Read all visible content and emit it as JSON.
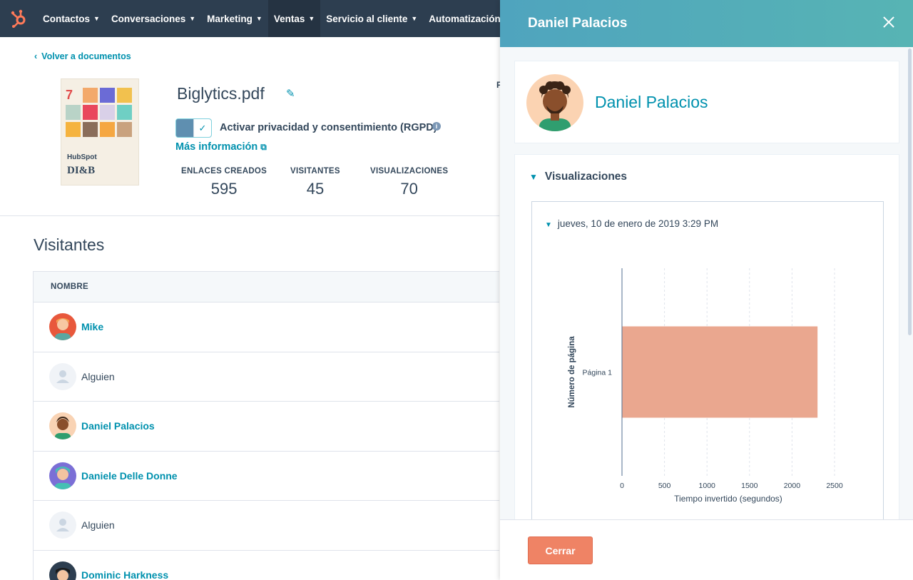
{
  "nav": {
    "items": [
      {
        "label": "Contactos"
      },
      {
        "label": "Conversaciones"
      },
      {
        "label": "Marketing"
      },
      {
        "label": "Ventas"
      },
      {
        "label": "Servicio al cliente"
      },
      {
        "label": "Automatización"
      }
    ],
    "active": "Ventas"
  },
  "document": {
    "back_label": "Volver a documentos",
    "title": "Biglytics.pdf",
    "thumb_brand": "HubSpot",
    "thumb_year": "DI&B",
    "gdpr_toggle_on": true,
    "gdpr_label": "Activar privacidad y consentimiento (RGPD)",
    "more_info_label": "Más información",
    "stats": [
      {
        "label": "ENLACES CREADOS",
        "value": "595"
      },
      {
        "label": "VISITANTES",
        "value": "45"
      },
      {
        "label": "VISUALIZACIONES",
        "value": "70"
      }
    ],
    "side_letter": "F"
  },
  "visitors": {
    "title": "Visitantes",
    "column_header": "NOMBRE",
    "rows": [
      {
        "name": "Mike",
        "known": true
      },
      {
        "name": "Alguien",
        "known": false
      },
      {
        "name": "Daniel Palacios",
        "known": true
      },
      {
        "name": "Daniele Delle Donne",
        "known": true
      },
      {
        "name": "Alguien",
        "known": false
      },
      {
        "name": "Dominic Harkness",
        "known": true
      }
    ]
  },
  "panel": {
    "title": "Daniel Palacios",
    "profile_name": "Daniel Palacios",
    "views_header": "Visualizaciones",
    "session_label": "jueves, 10 de enero de 2019 3:29 PM",
    "close_button": "Cerrar"
  },
  "chart_data": {
    "type": "bar",
    "orientation": "horizontal",
    "categories": [
      "Página 1"
    ],
    "values": [
      2300
    ],
    "xlabel": "Tiempo invertido (segundos)",
    "ylabel": "Número de página",
    "xlim": [
      0,
      2500
    ],
    "xticks": [
      0,
      500,
      1000,
      1500,
      2000,
      2500
    ],
    "grid": true,
    "bar_color": "#eaa78f"
  },
  "colors": {
    "nav_bg": "#2d3e50",
    "link": "#0091ae",
    "accent_button": "#ef8365",
    "brand_orange": "#ff7a59"
  }
}
